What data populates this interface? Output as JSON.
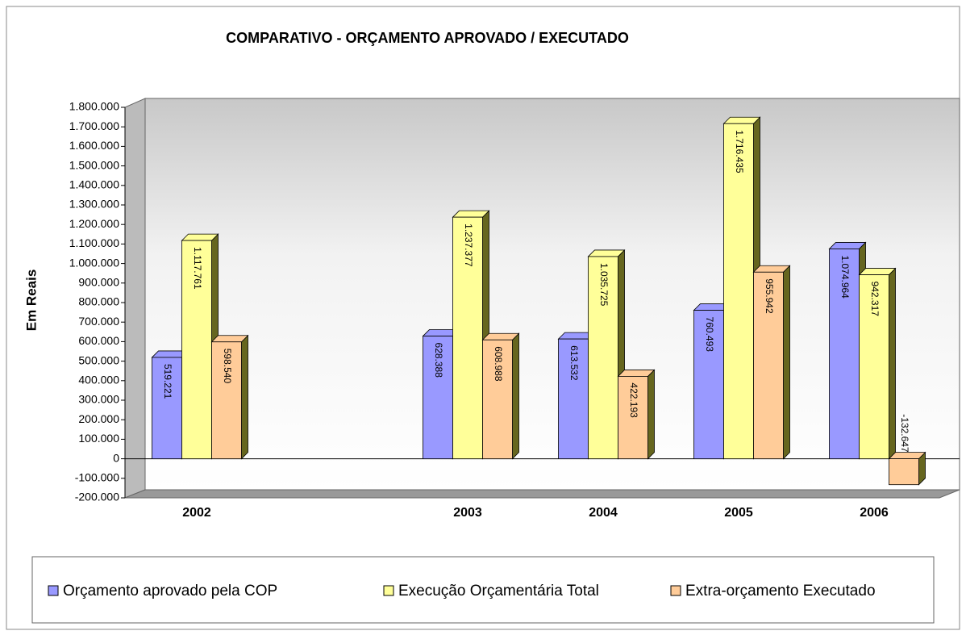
{
  "chart_data": {
    "type": "bar3d",
    "title": "COMPARATIVO - ORÇAMENTO APROVADO / EXECUTADO",
    "y_label": "Em Reais",
    "categories": [
      "2002",
      null,
      "2003",
      "2004",
      "2005",
      "2006"
    ],
    "series": [
      {
        "name": "Orçamento aprovado pela COP",
        "color": "#9999ff",
        "values": [
          519221,
          null,
          628388,
          613532,
          760493,
          1074964
        ],
        "value_labels": [
          "519.221",
          null,
          "628.388",
          "613.532",
          "760.493",
          "1.074.964"
        ]
      },
      {
        "name": "Execução Orçamentária Total",
        "color": "#ffff99",
        "values": [
          1117761,
          null,
          1237377,
          1035725,
          1716435,
          942317
        ],
        "value_labels": [
          "1.117.761",
          null,
          "1.237.377",
          "1.035.725",
          "1.716.435",
          "942.317"
        ]
      },
      {
        "name": "Extra-orçamento Executado",
        "color": "#ffcc99",
        "values": [
          598540,
          null,
          608988,
          422193,
          955942,
          -132647
        ],
        "value_labels": [
          "598.540",
          null,
          "608.988",
          "422.193",
          "955.942",
          "-132.647"
        ]
      }
    ],
    "ylim": [
      -200000,
      1800000
    ],
    "yticks": [
      {
        "value": -200000,
        "label": "-200.000"
      },
      {
        "value": -100000,
        "label": "-100.000"
      },
      0,
      {
        "value": 100000,
        "label": "100.000"
      },
      {
        "value": 200000,
        "label": "200.000"
      },
      {
        "value": 300000,
        "label": "300.000"
      },
      {
        "value": 400000,
        "label": "400.000"
      },
      {
        "value": 500000,
        "label": "500.000"
      },
      {
        "value": 600000,
        "label": "600.000"
      },
      {
        "value": 700000,
        "label": "700.000"
      },
      {
        "value": 800000,
        "label": "800.000"
      },
      {
        "value": 900000,
        "label": "900.000"
      },
      {
        "value": 1000000,
        "label": "1.000.000"
      },
      {
        "value": 1100000,
        "label": "1.100.000"
      },
      {
        "value": 1200000,
        "label": "1.200.000"
      },
      {
        "value": 1300000,
        "label": "1.300.000"
      },
      {
        "value": 1400000,
        "label": "1.400.000"
      },
      {
        "value": 1500000,
        "label": "1.500.000"
      },
      {
        "value": 1600000,
        "label": "1.600.000"
      },
      {
        "value": 1700000,
        "label": "1.700.000"
      },
      {
        "value": 1800000,
        "label": "1.800.000"
      }
    ],
    "legend": "bottom"
  }
}
